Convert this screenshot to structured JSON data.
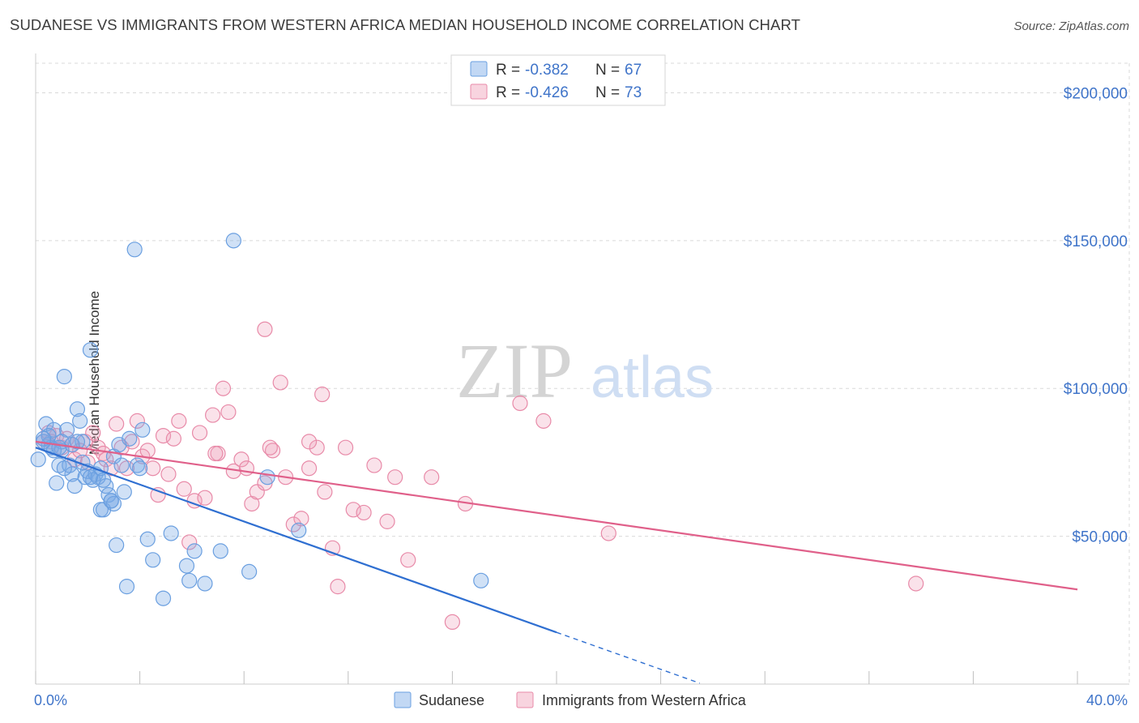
{
  "header": {
    "title": "SUDANESE VS IMMIGRANTS FROM WESTERN AFRICA MEDIAN HOUSEHOLD INCOME CORRELATION CHART",
    "source": "Source: ZipAtlas.com"
  },
  "watermark": {
    "zip": "ZIP",
    "atlas": "atlas"
  },
  "colors": {
    "blue": "#6a9fe0",
    "blue_fill": "rgba(120,168,230,0.35)",
    "blue_line": "#2f6fd1",
    "pink": "#e88aa8",
    "pink_fill": "rgba(240,160,185,0.30)",
    "pink_line": "#e0608a",
    "axis_text": "#3f74c9",
    "grid": "#d9d9d9"
  },
  "legend_box": {
    "rows": [
      {
        "r_label": "R =",
        "r_value": "-0.382",
        "n_label": "N =",
        "n_value": "67",
        "series": "blue"
      },
      {
        "r_label": "R =",
        "r_value": "-0.426",
        "n_label": "N =",
        "n_value": "73",
        "series": "pink"
      }
    ]
  },
  "chart_data": {
    "type": "scatter",
    "xlabel": "",
    "ylabel": "Median Household Income",
    "xlim": [
      0,
      40
    ],
    "ylim": [
      0,
      210000
    ],
    "x_ticks": [
      "0.0%",
      "40.0%"
    ],
    "y_ticks": [
      {
        "value": 50000,
        "label": "$50,000"
      },
      {
        "value": 100000,
        "label": "$100,000"
      },
      {
        "value": 150000,
        "label": "$150,000"
      },
      {
        "value": 200000,
        "label": "$200,000"
      }
    ],
    "grid": true,
    "legend_position": "bottom-center",
    "series": [
      {
        "name": "Sudanese",
        "color": "blue",
        "trend": {
          "x0": 0,
          "y0": 80000,
          "x1": 20,
          "y1": 17500,
          "dash_to_x": 25.5
        },
        "points": [
          [
            0.1,
            76000
          ],
          [
            0.3,
            82000
          ],
          [
            0.4,
            88000
          ],
          [
            0.5,
            81000
          ],
          [
            0.6,
            80000
          ],
          [
            0.7,
            86000
          ],
          [
            0.8,
            68000
          ],
          [
            0.9,
            74000
          ],
          [
            1.0,
            79000
          ],
          [
            1.1,
            104000
          ],
          [
            1.2,
            86000
          ],
          [
            1.3,
            74000
          ],
          [
            1.4,
            71000
          ],
          [
            1.5,
            67000
          ],
          [
            1.6,
            93000
          ],
          [
            1.7,
            89000
          ],
          [
            1.8,
            82000
          ],
          [
            1.9,
            70000
          ],
          [
            2.0,
            72000
          ],
          [
            2.1,
            113000
          ],
          [
            2.2,
            69000
          ],
          [
            2.3,
            71000
          ],
          [
            2.4,
            70000
          ],
          [
            2.5,
            59000
          ],
          [
            2.6,
            59000
          ],
          [
            2.7,
            67000
          ],
          [
            2.8,
            64000
          ],
          [
            2.9,
            62000
          ],
          [
            3.0,
            77000
          ],
          [
            3.1,
            47000
          ],
          [
            3.2,
            81000
          ],
          [
            3.3,
            74000
          ],
          [
            3.4,
            65000
          ],
          [
            3.5,
            33000
          ],
          [
            3.6,
            83000
          ],
          [
            3.8,
            147000
          ],
          [
            3.9,
            74000
          ],
          [
            4.0,
            73000
          ],
          [
            4.1,
            86000
          ],
          [
            4.3,
            49000
          ],
          [
            4.5,
            42000
          ],
          [
            4.9,
            29000
          ],
          [
            5.2,
            51000
          ],
          [
            5.8,
            40000
          ],
          [
            5.9,
            35000
          ],
          [
            6.1,
            45000
          ],
          [
            6.5,
            34000
          ],
          [
            7.1,
            45000
          ],
          [
            7.6,
            150000
          ],
          [
            8.2,
            38000
          ],
          [
            8.9,
            70000
          ],
          [
            10.1,
            52000
          ],
          [
            17.1,
            35000
          ],
          [
            0.5,
            84000
          ],
          [
            1.0,
            82000
          ],
          [
            1.4,
            81000
          ],
          [
            2.1,
            70000
          ],
          [
            2.5,
            73000
          ],
          [
            3.0,
            61000
          ],
          [
            0.7,
            79000
          ],
          [
            1.8,
            75000
          ],
          [
            2.6,
            69000
          ],
          [
            0.3,
            83000
          ],
          [
            1.1,
            73000
          ],
          [
            2.9,
            62000
          ],
          [
            0.9,
            80000
          ],
          [
            1.6,
            82000
          ]
        ]
      },
      {
        "name": "Immigrants from Western Africa",
        "color": "pink",
        "trend": {
          "x0": 0,
          "y0": 82000,
          "x1": 40,
          "y1": 32000
        },
        "points": [
          [
            0.3,
            82000
          ],
          [
            0.5,
            85000
          ],
          [
            0.6,
            82000
          ],
          [
            0.8,
            84000
          ],
          [
            1.0,
            80000
          ],
          [
            1.2,
            83000
          ],
          [
            1.4,
            81000
          ],
          [
            1.5,
            76000
          ],
          [
            1.7,
            79000
          ],
          [
            1.9,
            82000
          ],
          [
            2.0,
            75000
          ],
          [
            2.2,
            85000
          ],
          [
            2.4,
            80000
          ],
          [
            2.6,
            78000
          ],
          [
            2.7,
            76000
          ],
          [
            2.9,
            73000
          ],
          [
            3.1,
            88000
          ],
          [
            3.3,
            80000
          ],
          [
            3.5,
            73000
          ],
          [
            3.7,
            82000
          ],
          [
            3.9,
            89000
          ],
          [
            4.1,
            77000
          ],
          [
            4.3,
            79000
          ],
          [
            4.5,
            73000
          ],
          [
            4.7,
            64000
          ],
          [
            4.9,
            84000
          ],
          [
            5.1,
            71000
          ],
          [
            5.3,
            83000
          ],
          [
            5.5,
            89000
          ],
          [
            5.7,
            66000
          ],
          [
            5.9,
            48000
          ],
          [
            6.1,
            62000
          ],
          [
            6.3,
            85000
          ],
          [
            6.5,
            63000
          ],
          [
            6.8,
            91000
          ],
          [
            7.0,
            78000
          ],
          [
            7.2,
            100000
          ],
          [
            7.4,
            92000
          ],
          [
            7.6,
            72000
          ],
          [
            7.9,
            76000
          ],
          [
            8.1,
            73000
          ],
          [
            8.3,
            61000
          ],
          [
            8.5,
            65000
          ],
          [
            8.8,
            68000
          ],
          [
            9.1,
            79000
          ],
          [
            9.4,
            102000
          ],
          [
            9.6,
            70000
          ],
          [
            9.9,
            54000
          ],
          [
            10.2,
            56000
          ],
          [
            10.5,
            73000
          ],
          [
            10.8,
            80000
          ],
          [
            11.1,
            65000
          ],
          [
            11.4,
            46000
          ],
          [
            11.6,
            33000
          ],
          [
            11.9,
            80000
          ],
          [
            12.2,
            59000
          ],
          [
            12.6,
            58000
          ],
          [
            13.0,
            74000
          ],
          [
            13.5,
            55000
          ],
          [
            13.8,
            70000
          ],
          [
            14.3,
            42000
          ],
          [
            15.2,
            70000
          ],
          [
            16.0,
            21000
          ],
          [
            16.5,
            61000
          ],
          [
            18.6,
            95000
          ],
          [
            19.5,
            89000
          ],
          [
            22.0,
            51000
          ],
          [
            8.8,
            120000
          ],
          [
            11.0,
            98000
          ],
          [
            10.5,
            82000
          ],
          [
            9.0,
            80000
          ],
          [
            33.8,
            34000
          ],
          [
            6.9,
            78000
          ]
        ]
      }
    ]
  }
}
